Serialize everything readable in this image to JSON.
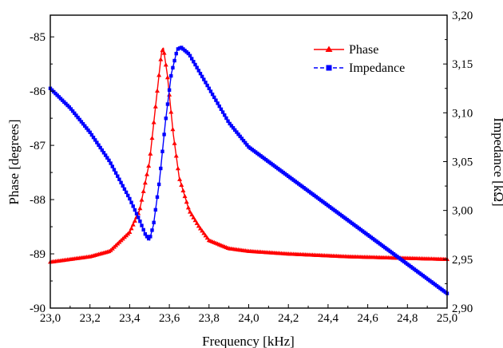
{
  "chart_data": {
    "type": "line",
    "xlabel": "Frequency [kHz]",
    "ylabel_left": "Phase [degrees]",
    "ylabel_right": "Impedance [kΩ]",
    "xlim": [
      23.0,
      25.0
    ],
    "ylim_left": [
      -90,
      -84.6
    ],
    "ylim_right": [
      2.9,
      3.2
    ],
    "x_ticks": [
      "23,0",
      "23,2",
      "23,4",
      "23,6",
      "23,8",
      "24,0",
      "24,2",
      "24,4",
      "24,6",
      "24,8",
      "25,0"
    ],
    "y_left_ticks": [
      "-85",
      "-86",
      "-87",
      "-88",
      "-89",
      "-90"
    ],
    "y_right_ticks": [
      "3,20",
      "3,15",
      "3,10",
      "3,05",
      "3,00",
      "2,95",
      "2,90"
    ],
    "legend_position": "top-right",
    "grid": false,
    "series": [
      {
        "name": "Phase",
        "axis": "left",
        "color": "#ff0000",
        "marker": "triangle",
        "x": [
          23.0,
          23.1,
          23.2,
          23.3,
          23.4,
          23.45,
          23.5,
          23.53,
          23.56,
          23.57,
          23.59,
          23.62,
          23.65,
          23.7,
          23.75,
          23.8,
          23.9,
          24.0,
          24.2,
          24.5,
          24.8,
          25.0
        ],
        "y": [
          -89.15,
          -89.1,
          -89.05,
          -88.95,
          -88.6,
          -88.2,
          -87.3,
          -86.3,
          -85.3,
          -85.2,
          -85.7,
          -86.8,
          -87.6,
          -88.2,
          -88.5,
          -88.75,
          -88.9,
          -88.95,
          -89.0,
          -89.05,
          -89.08,
          -89.1
        ]
      },
      {
        "name": "Impedance",
        "axis": "right",
        "color": "#0000ff",
        "marker": "square",
        "x": [
          23.0,
          23.1,
          23.2,
          23.3,
          23.4,
          23.45,
          23.48,
          23.5,
          23.52,
          23.55,
          23.58,
          23.61,
          23.64,
          23.66,
          23.7,
          23.8,
          23.9,
          24.0,
          24.2,
          24.4,
          24.6,
          24.8,
          25.0
        ],
        "y": [
          3.125,
          3.105,
          3.08,
          3.05,
          3.012,
          2.99,
          2.975,
          2.97,
          2.985,
          3.03,
          3.09,
          3.14,
          3.165,
          3.167,
          3.16,
          3.125,
          3.09,
          3.065,
          3.035,
          3.005,
          2.975,
          2.945,
          2.915
        ]
      }
    ]
  }
}
